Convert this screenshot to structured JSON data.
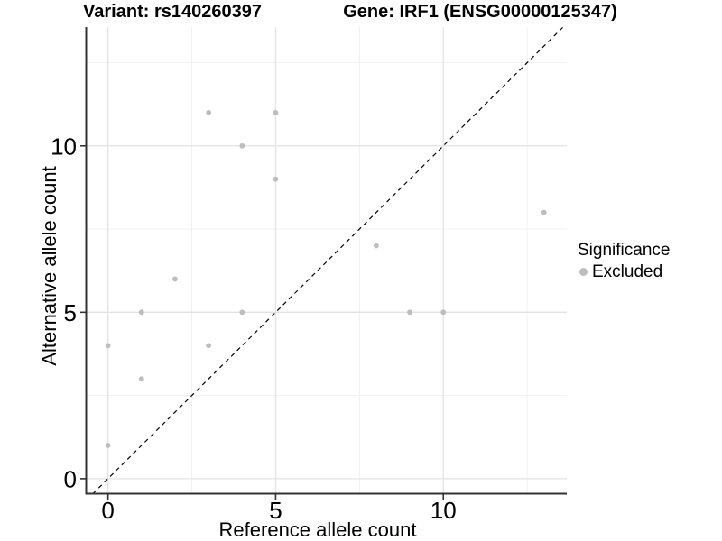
{
  "chart_data": {
    "type": "scatter",
    "title_left": "Variant: rs140260397",
    "title_right": "Gene: IRF1 (ENSG00000125347)",
    "xlabel": "Reference allele count",
    "ylabel": "Alternative allele count",
    "xlim": [
      -0.65,
      13.68
    ],
    "ylim": [
      -0.45,
      13.57
    ],
    "x_major_ticks": [
      0,
      5,
      10
    ],
    "y_major_ticks": [
      0,
      5,
      10
    ],
    "x_minor_ticks": [
      2.5,
      7.5,
      12.5
    ],
    "y_minor_ticks": [
      2.5,
      7.5,
      12.5
    ],
    "grid": true,
    "identity_line": {
      "style": "dashed",
      "slope": 1,
      "intercept": 0
    },
    "legend": {
      "title": "Significance",
      "position": "right",
      "items": [
        {
          "label": "Excluded",
          "color": "#bdbdbd"
        }
      ]
    },
    "series": [
      {
        "name": "Excluded",
        "color": "#bdbdbd",
        "points": [
          [
            0,
            1
          ],
          [
            0,
            4
          ],
          [
            1,
            3
          ],
          [
            1,
            5
          ],
          [
            2,
            6
          ],
          [
            3,
            4
          ],
          [
            3,
            11
          ],
          [
            4,
            5
          ],
          [
            4,
            10
          ],
          [
            5,
            9
          ],
          [
            5,
            11
          ],
          [
            8,
            7
          ],
          [
            9,
            5
          ],
          [
            10,
            5
          ],
          [
            13,
            8
          ]
        ]
      }
    ],
    "colors": {
      "point": "#bdbdbd",
      "grid_major": "#e3e3e3",
      "grid_minor": "#f0f0f0",
      "axis": "#333333",
      "text": "#000000",
      "identity_line": "#000000",
      "background": "#ffffff"
    }
  }
}
